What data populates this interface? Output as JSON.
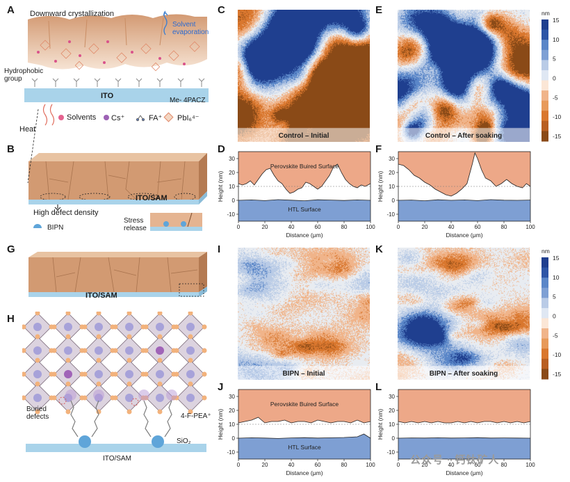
{
  "colors": {
    "blue_dark": "#1f3f8f",
    "blue_mid": "#5a86c8",
    "blue_light": "#b9cbe6",
    "neutral": "#e8ecf1",
    "orange_light": "#f0b48a",
    "orange_mid": "#d9772e",
    "orange_dark": "#8a4a17",
    "perovskite": "#eda888",
    "htl": "#7e9fd3",
    "crystal": "#d9a47e"
  },
  "panel_labels": {
    "a": "A",
    "b": "B",
    "c": "C",
    "d": "D",
    "e": "E",
    "f": "F",
    "g": "G",
    "h": "H",
    "i": "I",
    "j": "J",
    "k": "K",
    "l": "L"
  },
  "panel_a": {
    "title": "Downward crystallization",
    "solvent": "Solvent evaporation",
    "hydrophobic": "Hydrophobic group",
    "ito": "ITO",
    "sam": "Me- 4PACZ",
    "heat": "Heat",
    "legend": [
      {
        "label": "Solvents",
        "icon": "solvent-dot-icon"
      },
      {
        "label": "Cs⁺",
        "icon": "cs-dot-icon"
      },
      {
        "label": "FA⁺",
        "icon": "fa-molecule-icon"
      },
      {
        "label": "PbI₆⁴⁻",
        "icon": "octahedron-icon"
      }
    ]
  },
  "panel_b": {
    "substrate": "ITO/SAM",
    "defect": "High defect density",
    "bipn": "BIPN",
    "stress": "Stress release"
  },
  "panel_g": {
    "substrate": "ITO/SAM"
  },
  "panel_h": {
    "buried": "Buried defects",
    "pea": "4-F-PEA⁺",
    "sio2": "SiO₂",
    "substrate": "ITO/SAM"
  },
  "maps": {
    "c": "Control – Initial",
    "e": "Control – After soaking",
    "i": "BIPN – Initial",
    "k": "BIPN – After soaking"
  },
  "colorbar_top": {
    "unit": "nm",
    "ticks": [
      "15",
      "10",
      "5",
      "0",
      "-5",
      "-10",
      "-15"
    ]
  },
  "colorbar_bottom": {
    "unit": "nm",
    "ticks": [
      "15",
      "10",
      "5",
      "0",
      "-5",
      "-10",
      "-15"
    ]
  },
  "profiles": {
    "x_label": "Distance (μm)",
    "y_label": "Height (nm)",
    "perovskite_label": "Perovskite Buired Surface",
    "htl_label": "HTL Surface"
  },
  "chart_data": [
    {
      "panel": "D",
      "type": "area",
      "xlabel": "Distance (μm)",
      "ylabel": "Height (nm)",
      "xlim": [
        0,
        100
      ],
      "ylim": [
        -15,
        35
      ],
      "xticks": [
        "0",
        "20",
        "40",
        "60",
        "80",
        "100"
      ],
      "yticks": [
        "30",
        "20",
        "10",
        "0",
        "-10"
      ],
      "annotations": [
        "Perovskite Buired Surface",
        "HTL Surface"
      ],
      "series": [
        {
          "name": "Perovskite",
          "x": [
            0,
            3,
            6,
            9,
            12,
            15,
            18,
            21,
            24,
            27,
            30,
            33,
            36,
            39,
            42,
            45,
            48,
            51,
            54,
            57,
            60,
            63,
            66,
            69,
            72,
            75,
            78,
            81,
            84,
            87,
            90,
            93,
            96,
            100
          ],
          "values": [
            12,
            11,
            12,
            14,
            11,
            15,
            19,
            22,
            23,
            18,
            14,
            12,
            8,
            5,
            6,
            8,
            9,
            13,
            12,
            10,
            8,
            10,
            14,
            18,
            24,
            26,
            20,
            15,
            12,
            10,
            9,
            11,
            10,
            12
          ]
        },
        {
          "name": "HTL",
          "x": [
            0,
            10,
            20,
            30,
            40,
            50,
            60,
            70,
            80,
            90,
            100
          ],
          "values": [
            0,
            0.3,
            -0.2,
            0.5,
            0.1,
            -0.3,
            0.4,
            0.2,
            -0.1,
            0.3,
            0
          ]
        }
      ]
    },
    {
      "panel": "F",
      "type": "area",
      "xlabel": "Distance (μm)",
      "ylabel": "Height (nm)",
      "xlim": [
        0,
        100
      ],
      "ylim": [
        -15,
        35
      ],
      "xticks": [
        "0",
        "20",
        "40",
        "60",
        "80",
        "100"
      ],
      "yticks": [
        "30",
        "20",
        "10",
        "0",
        "-10"
      ],
      "series": [
        {
          "name": "Perovskite",
          "x": [
            0,
            4,
            8,
            12,
            16,
            20,
            24,
            28,
            32,
            36,
            40,
            44,
            48,
            52,
            56,
            58,
            60,
            63,
            66,
            70,
            74,
            78,
            82,
            86,
            90,
            94,
            97,
            100
          ],
          "values": [
            26,
            25,
            22,
            18,
            16,
            13,
            11,
            8,
            6,
            4,
            3,
            5,
            8,
            12,
            26,
            34,
            30,
            22,
            16,
            14,
            10,
            12,
            15,
            12,
            10,
            9,
            12,
            10
          ]
        },
        {
          "name": "HTL",
          "x": [
            0,
            10,
            20,
            30,
            40,
            50,
            60,
            70,
            80,
            90,
            100
          ],
          "values": [
            0,
            0.2,
            -0.3,
            0.4,
            0,
            0.3,
            -0.2,
            0.5,
            0.1,
            0,
            0.2
          ]
        }
      ]
    },
    {
      "panel": "J",
      "type": "area",
      "xlabel": "Distance (μm)",
      "ylabel": "Height (nm)",
      "xlim": [
        0,
        100
      ],
      "ylim": [
        -15,
        35
      ],
      "xticks": [
        "0",
        "20",
        "40",
        "60",
        "80",
        "100"
      ],
      "yticks": [
        "30",
        "20",
        "10",
        "0",
        "-10"
      ],
      "annotations": [
        "Perovskite Buired Surface",
        "HTL Surface"
      ],
      "series": [
        {
          "name": "Perovskite",
          "x": [
            0,
            5,
            10,
            15,
            20,
            25,
            30,
            35,
            40,
            45,
            50,
            55,
            60,
            65,
            70,
            75,
            80,
            85,
            90,
            95,
            100
          ],
          "values": [
            11,
            12,
            13,
            15,
            11,
            12,
            12,
            13,
            11,
            12,
            12,
            11,
            13,
            12,
            11,
            12,
            12,
            11,
            13,
            11,
            12
          ]
        },
        {
          "name": "HTL",
          "x": [
            0,
            10,
            20,
            30,
            40,
            50,
            60,
            70,
            80,
            90,
            95,
            100
          ],
          "values": [
            0,
            0.3,
            0.1,
            -0.2,
            0.2,
            0.4,
            0.1,
            0.3,
            0.5,
            1,
            3,
            0
          ]
        }
      ]
    },
    {
      "panel": "L",
      "type": "area",
      "xlabel": "Distance (μm)",
      "ylabel": "Height (nm)",
      "xlim": [
        0,
        100
      ],
      "ylim": [
        -15,
        35
      ],
      "xticks": [
        "0",
        "20",
        "40",
        "60",
        "80",
        "100"
      ],
      "yticks": [
        "30",
        "20",
        "10",
        "0",
        "-10"
      ],
      "series": [
        {
          "name": "Perovskite",
          "x": [
            0,
            5,
            10,
            15,
            20,
            25,
            30,
            35,
            40,
            45,
            50,
            55,
            60,
            65,
            70,
            75,
            80,
            85,
            90,
            95,
            100
          ],
          "values": [
            12,
            11,
            12,
            11,
            12,
            11,
            12,
            11,
            11,
            12,
            11,
            12,
            11,
            12,
            12,
            11,
            12,
            11,
            12,
            11,
            12
          ]
        },
        {
          "name": "HTL",
          "x": [
            0,
            10,
            20,
            30,
            40,
            50,
            60,
            70,
            80,
            90,
            100
          ],
          "values": [
            0,
            0.2,
            0.1,
            0.3,
            0.1,
            0.2,
            0.4,
            0.1,
            0.2,
            0.1,
            0
          ]
        }
      ]
    }
  ],
  "watermark": "公众号 · 钙钛矿人"
}
